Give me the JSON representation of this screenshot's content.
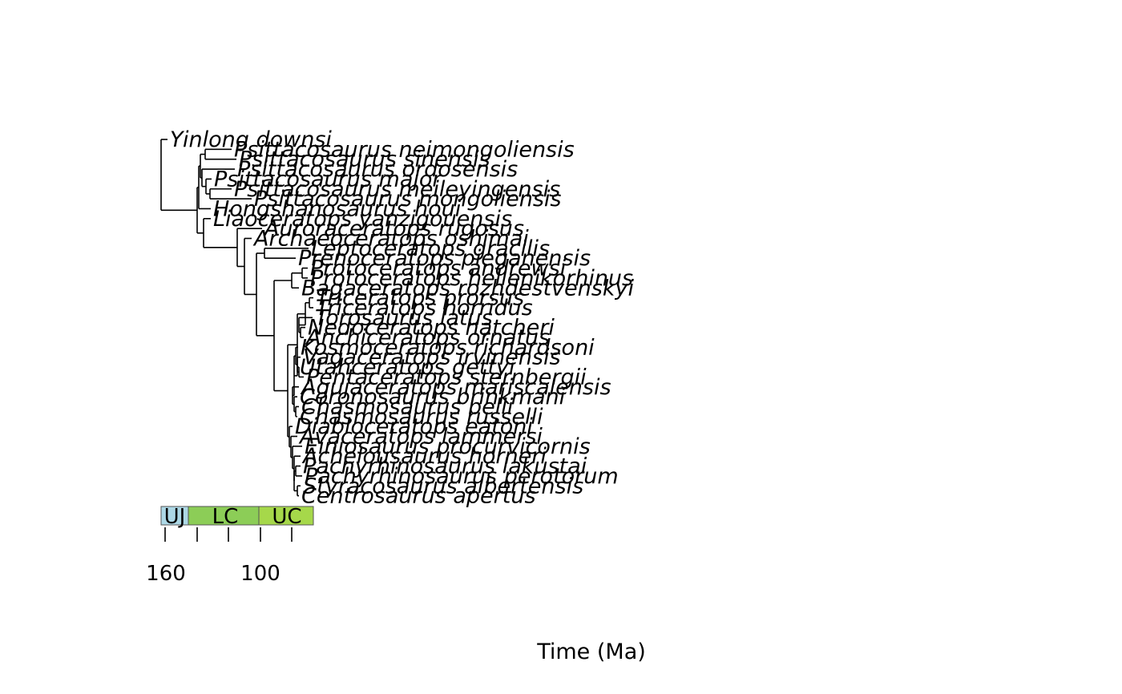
{
  "tree": {
    "tips": [
      "Yinlong downsi",
      "Psittacosaurus neimongoliensis",
      "Psittacosaurus sinensis",
      "Psittacosaurus ordosensis",
      "Psittacosaurus major",
      "Psittacosaurus meileyingensis",
      "Psittacosaurus mongoliensis",
      "Hongshanosaurus houi",
      "Liaoceratops yanzigouensis",
      "Auroraceratops rugosus",
      "Archaeoceratops oshimai",
      "Leptoceratops gracilis",
      "Prenoceratops pieganensis",
      "Protoceratops andrewsi",
      "Protoceratops hellenikorhinus",
      "Bagaceratops rozhdestvenskyi",
      "Triceratops prorsus",
      "Triceratops horridus",
      "Torosaurus latus",
      "Nedoceratops hatcheri",
      "Anchiceratops ornatus",
      "Kosmoceratops richardsoni",
      "Vagaceratops irvinensis",
      "Utahceratops gettyi",
      "Pentaceratops sternbergii",
      "Agujaceratops mariscalensis",
      "Coronosaurus brinkmani",
      "Chasmosaurus belli",
      "Chasmosaurus russelli",
      "Diabloceratops eatoni",
      "Avaceratops lammersi",
      "Einiosaurus procurvicornis",
      "Achelousaurus horneri",
      "Pachyrhinosaurus lakustai",
      "Pachyrhinosaurus perotorum",
      "Styracosaurus albertensis",
      "Centrosaurus apertus"
    ]
  },
  "periods": [
    {
      "label": "UJ",
      "color": "#add8e6"
    },
    {
      "label": "LC",
      "color": "#8ccd57"
    },
    {
      "label": "UC",
      "color": "#a6d84a"
    }
  ],
  "axis": {
    "title": "Time (Ma)",
    "ticks": [
      160,
      100
    ]
  }
}
